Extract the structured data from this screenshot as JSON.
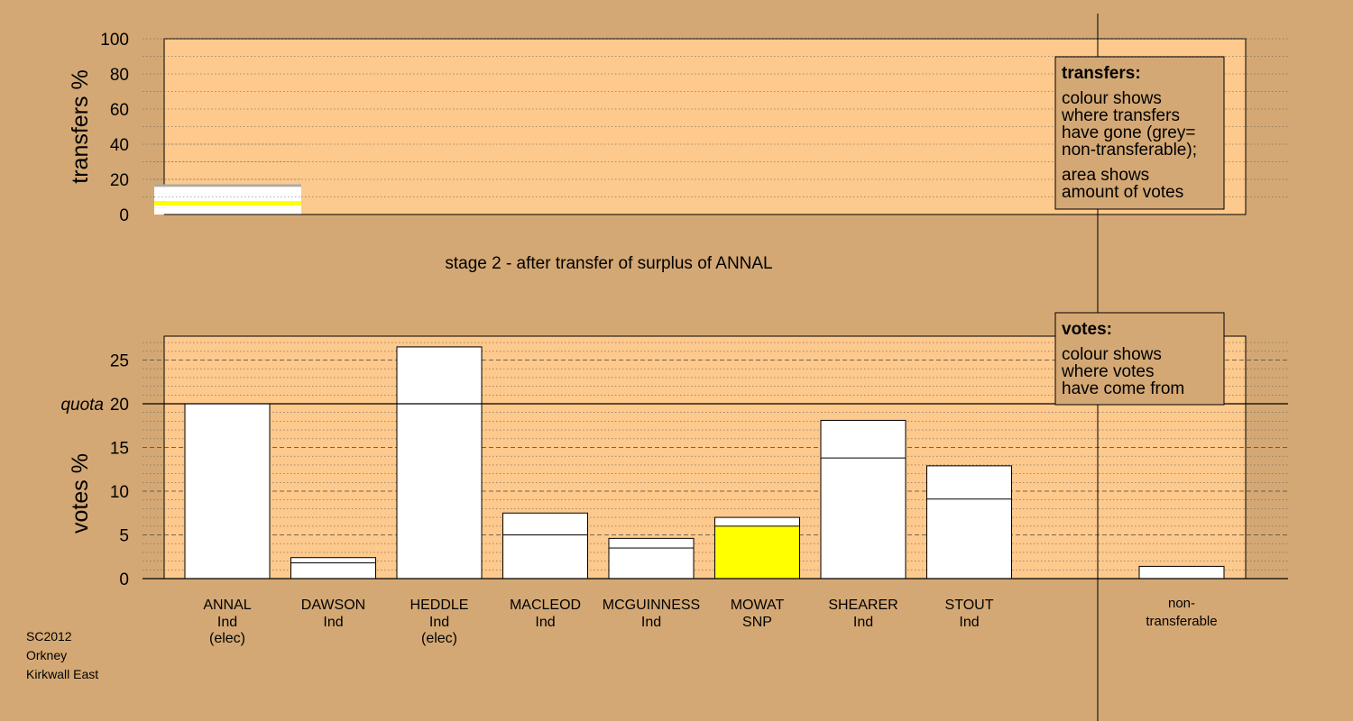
{
  "chart_data": {
    "type": "bar",
    "title": "stage 2 - after transfer of surplus of ANNAL",
    "quota_label": "quota",
    "quota": 20,
    "candidates": [
      {
        "name": "ANNAL",
        "party": "Ind",
        "note": "(elec)"
      },
      {
        "name": "DAWSON",
        "party": "Ind",
        "note": ""
      },
      {
        "name": "HEDDLE",
        "party": "Ind",
        "note": "(elec)"
      },
      {
        "name": "MACLEOD",
        "party": "Ind",
        "note": ""
      },
      {
        "name": "MCGUINNESS",
        "party": "Ind",
        "note": ""
      },
      {
        "name": "MOWAT",
        "party": "SNP",
        "note": ""
      },
      {
        "name": "SHEARER",
        "party": "Ind",
        "note": ""
      },
      {
        "name": "STOUT",
        "party": "Ind",
        "note": ""
      }
    ],
    "nontransferable_label": "non-transferable",
    "votes": {
      "ylabel": "votes %",
      "ylim": [
        0,
        28
      ],
      "yticks": [
        0,
        5,
        10,
        15,
        20,
        25
      ],
      "first_preference": [
        20.0,
        1.8,
        26.5,
        5.0,
        3.5,
        6.0,
        13.8,
        9.1
      ],
      "after_transfer": [
        20.0,
        2.4,
        26.5,
        7.5,
        4.6,
        7.0,
        18.1,
        12.9
      ],
      "first_preference_colors": [
        "#ffffff",
        "#ffffff",
        "#ffffff",
        "#ffffff",
        "#ffffff",
        "#ffff00",
        "#ffffff",
        "#ffffff"
      ],
      "nontransferable": 1.4
    },
    "transfers": {
      "ylabel": "transfers %",
      "ylim": [
        0,
        100
      ],
      "yticks": [
        0,
        20,
        40,
        60,
        80,
        100
      ],
      "from": "ANNAL",
      "segments": [
        {
          "to": "DAWSON",
          "value": 1.5,
          "color": "#ffffff"
        },
        {
          "to": "MACLEOD",
          "value": 2.5,
          "color": "#ffffff"
        },
        {
          "to": "MCGUINNESS",
          "value": 1.1,
          "color": "#ffffff"
        },
        {
          "to": "MOWAT",
          "value": 2.5,
          "color": "#ffff00"
        },
        {
          "to": "SHEARER",
          "value": 4.4,
          "color": "#ffffff"
        },
        {
          "to": "STOUT",
          "value": 3.8,
          "color": "#ffffff"
        },
        {
          "to": "non-transferable",
          "value": 1.4,
          "color": "#aaaaaa"
        }
      ],
      "total": 41
    },
    "legend_transfers": {
      "title": "transfers:",
      "lines": [
        "colour shows",
        "where transfers",
        "have gone (grey=",
        "non-transferable);"
      ],
      "lines2": [
        "area shows",
        "amount of votes"
      ]
    },
    "legend_votes": {
      "title": "votes:",
      "lines": [
        "colour shows",
        "where votes",
        "have come from"
      ]
    },
    "grid": true
  },
  "footer": {
    "election": "SC2012",
    "council": "Orkney",
    "ward": "Kirkwall East"
  }
}
